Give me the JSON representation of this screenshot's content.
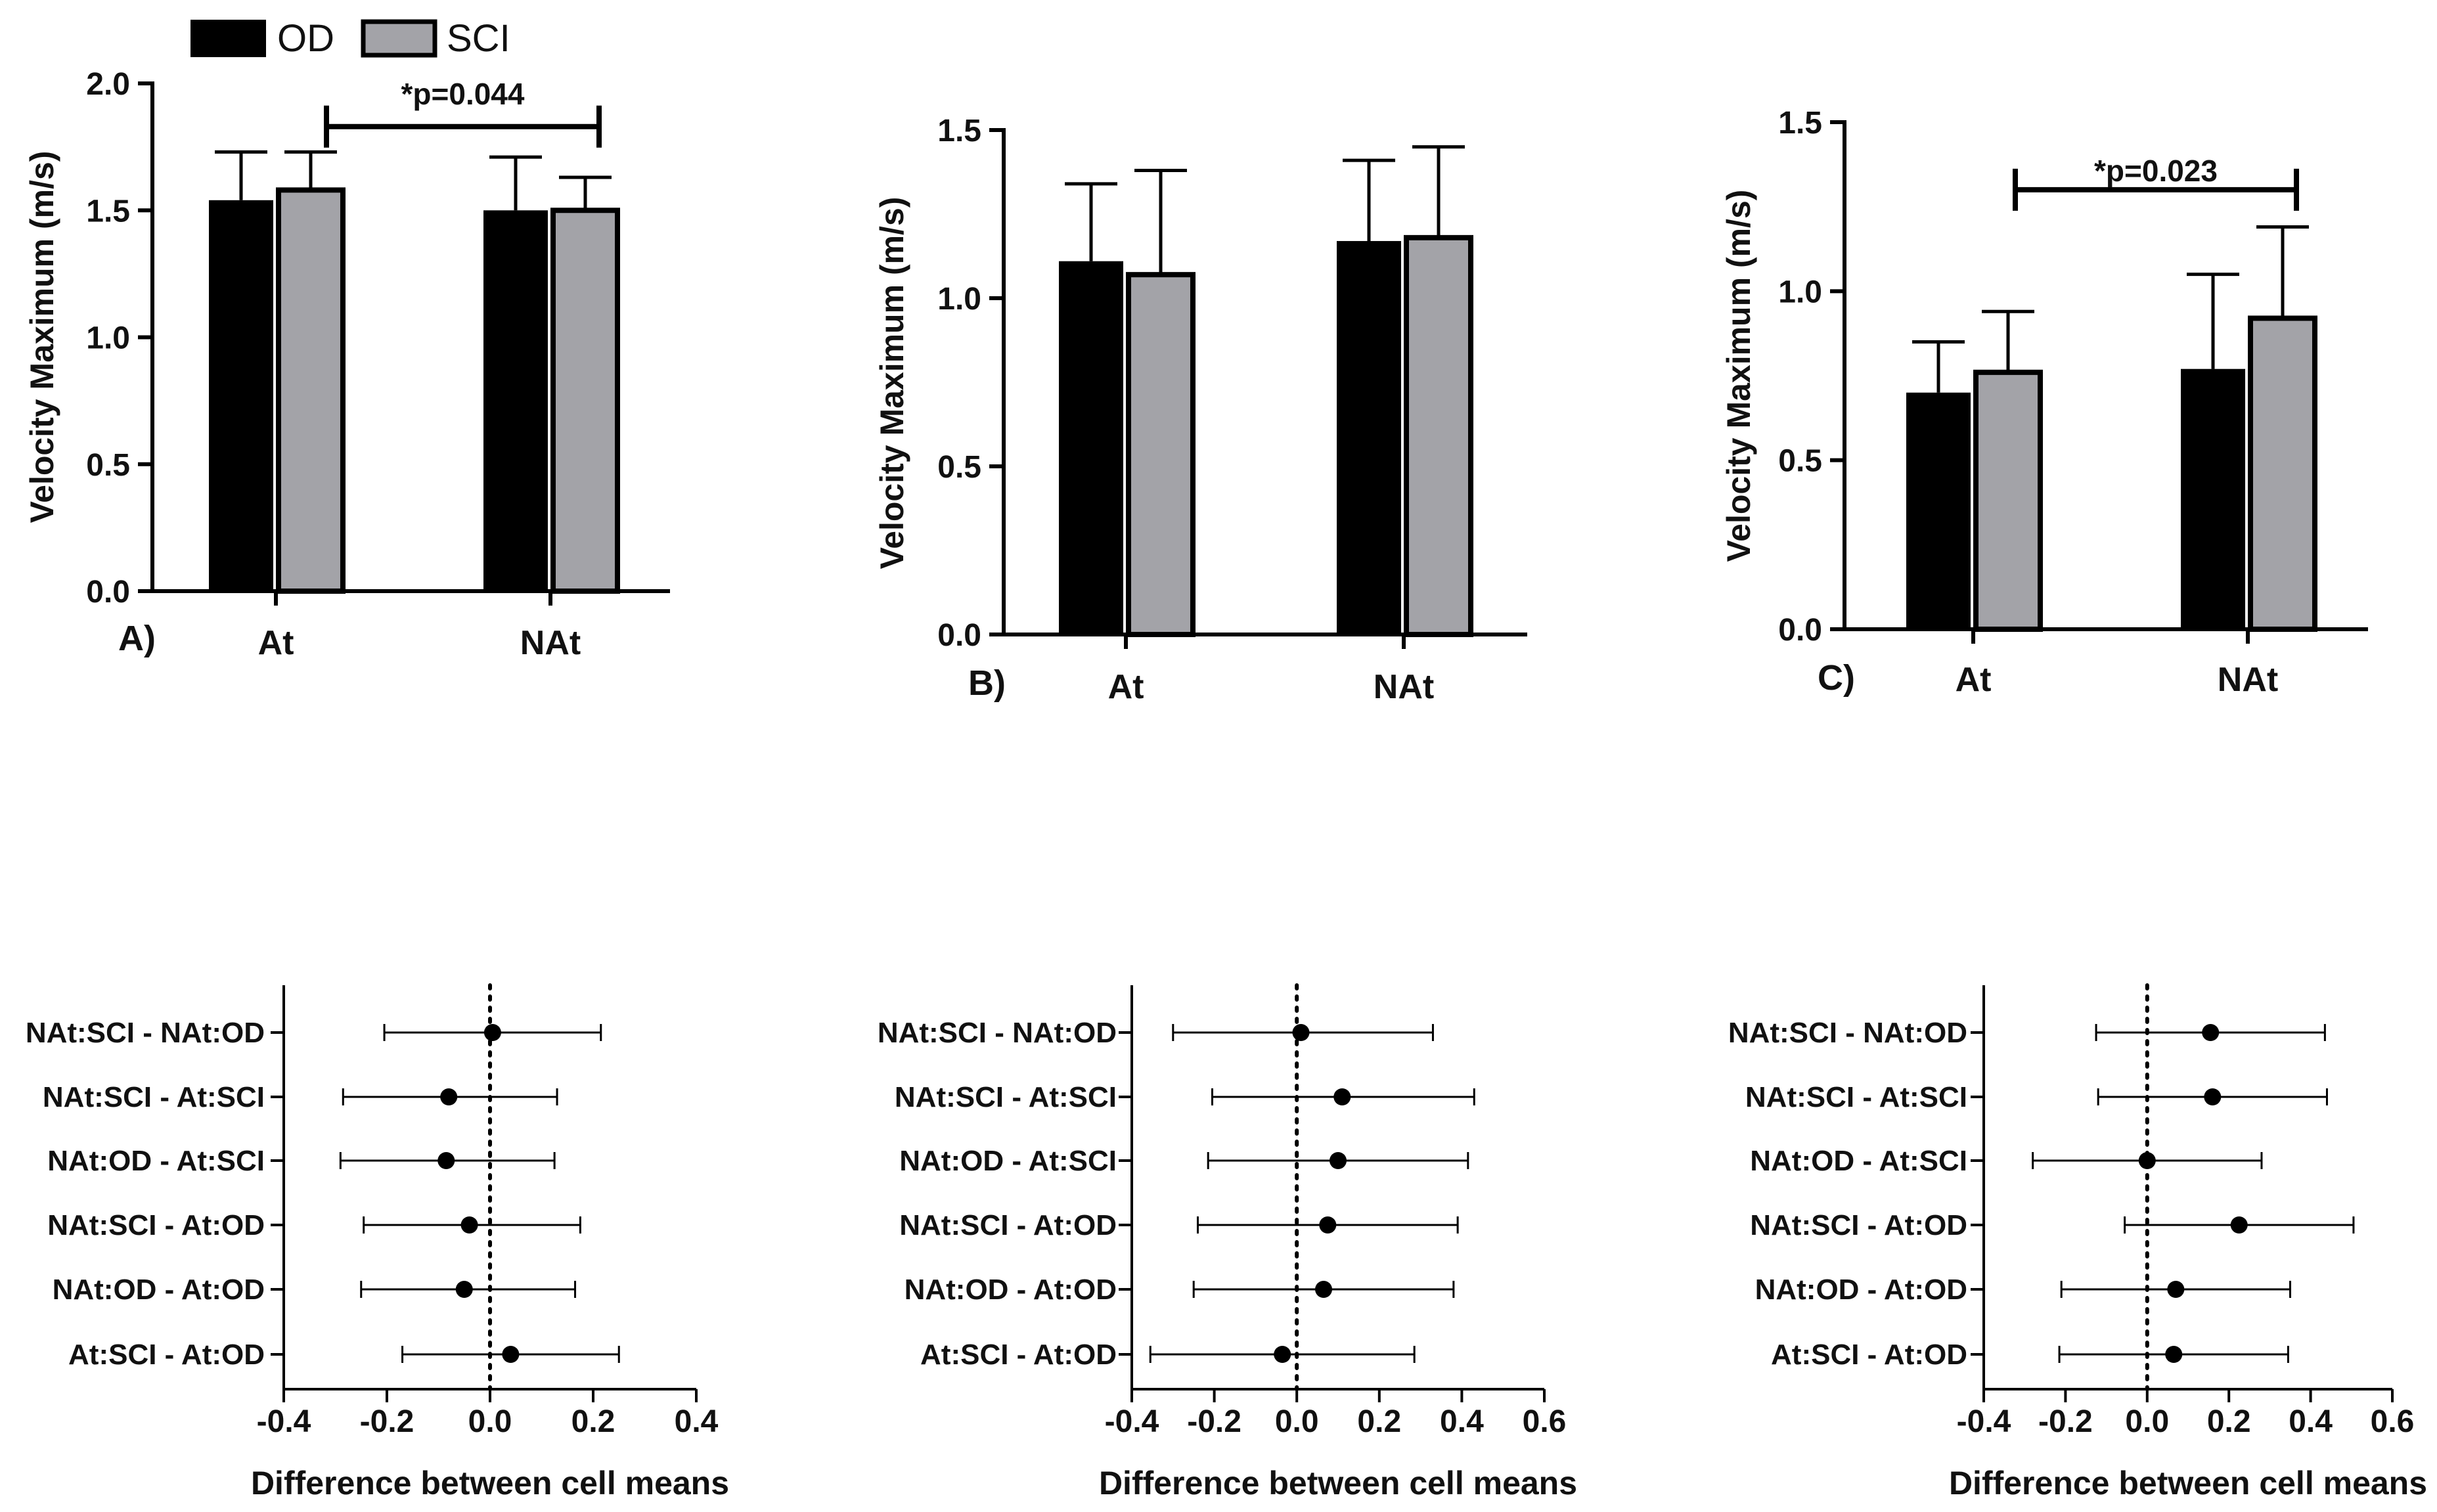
{
  "legend": [
    {
      "name": "OD",
      "color": "#000000"
    },
    {
      "name": "SCI",
      "color": "#a3a3a8"
    }
  ],
  "colors": {
    "axis": "#000000",
    "od": "#000000",
    "sci": "#a3a3a8"
  },
  "chart_data": [
    {
      "type": "bar",
      "panel": "A)",
      "ylabel": "Velocity Maximum (m/s)",
      "ylim": [
        0,
        2.0
      ],
      "yticks": [
        "0.0",
        "0.5",
        "1.0",
        "1.5",
        "2.0"
      ],
      "categories": [
        "At",
        "NAt"
      ],
      "series": [
        {
          "name": "OD",
          "values": [
            1.54,
            1.5
          ],
          "errors": [
            0.19,
            0.21
          ]
        },
        {
          "name": "SCI",
          "values": [
            1.58,
            1.5
          ],
          "errors": [
            0.15,
            0.13
          ]
        }
      ],
      "significance": {
        "label": "*p=0.044",
        "y": 1.83
      }
    },
    {
      "type": "bar",
      "panel": "B)",
      "ylabel": "Velocity Maximum (m/s)",
      "ylim": [
        0,
        1.5
      ],
      "yticks": [
        "0.0",
        "0.5",
        "1.0",
        "1.5"
      ],
      "categories": [
        "At",
        "NAt"
      ],
      "series": [
        {
          "name": "OD",
          "values": [
            1.11,
            1.17
          ],
          "errors": [
            0.23,
            0.24
          ]
        },
        {
          "name": "SCI",
          "values": [
            1.07,
            1.18
          ],
          "errors": [
            0.31,
            0.27
          ]
        }
      ]
    },
    {
      "type": "bar",
      "panel": "C)",
      "ylabel": "Velocity Maximum (m/s)",
      "ylim": [
        0,
        1.5
      ],
      "yticks": [
        "0.0",
        "0.5",
        "1.0",
        "1.5"
      ],
      "categories": [
        "At",
        "NAt"
      ],
      "series": [
        {
          "name": "OD",
          "values": [
            0.7,
            0.77
          ],
          "errors": [
            0.15,
            0.28
          ]
        },
        {
          "name": "SCI",
          "values": [
            0.76,
            0.92
          ],
          "errors": [
            0.18,
            0.27
          ]
        }
      ],
      "significance": {
        "label": "*p=0.023",
        "y": 1.3
      }
    },
    {
      "type": "forest",
      "xlabel": "Difference between cell means",
      "xlim": [
        -0.4,
        0.4
      ],
      "xticks": [
        "-0.4",
        "-0.2",
        "0.0",
        "0.2",
        "0.4"
      ],
      "comparisons": [
        "NAt:SCI - NAt:OD",
        "NAt:SCI - At:SCI",
        "NAt:OD - At:SCI",
        "NAt:SCI - At:OD",
        "NAt:OD - At:OD",
        "At:SCI - At:OD"
      ],
      "means": [
        0.005,
        -0.08,
        -0.085,
        -0.04,
        -0.05,
        0.04
      ],
      "lower": [
        -0.205,
        -0.285,
        -0.29,
        -0.245,
        -0.25,
        -0.17
      ],
      "upper": [
        0.215,
        0.13,
        0.125,
        0.175,
        0.165,
        0.25
      ]
    },
    {
      "type": "forest",
      "xlabel": "Difference between cell means",
      "xlim": [
        -0.4,
        0.6
      ],
      "xticks": [
        "-0.4",
        "-0.2",
        "0.0",
        "0.2",
        "0.4",
        "0.6"
      ],
      "comparisons": [
        "NAt:SCI - NAt:OD",
        "NAt:SCI - At:SCI",
        "NAt:OD - At:SCI",
        "NAt:SCI - At:OD",
        "NAt:OD - At:OD",
        "At:SCI - At:OD"
      ],
      "means": [
        0.01,
        0.11,
        0.1,
        0.075,
        0.065,
        -0.035
      ],
      "lower": [
        -0.3,
        -0.205,
        -0.215,
        -0.24,
        -0.25,
        -0.355
      ],
      "upper": [
        0.33,
        0.43,
        0.415,
        0.39,
        0.38,
        0.285
      ]
    },
    {
      "type": "forest",
      "xlabel": "Difference between cell means",
      "xlim": [
        -0.4,
        0.6
      ],
      "xticks": [
        "-0.4",
        "-0.2",
        "0.0",
        "0.2",
        "0.4",
        "0.6"
      ],
      "comparisons": [
        "NAt:SCI - NAt:OD",
        "NAt:SCI - At:SCI",
        "NAt:OD - At:SCI",
        "NAt:SCI - At:OD",
        "NAt:OD - At:OD",
        "At:SCI - At:OD"
      ],
      "means": [
        0.155,
        0.16,
        0.0,
        0.225,
        0.07,
        0.065
      ],
      "lower": [
        -0.125,
        -0.12,
        -0.28,
        -0.055,
        -0.21,
        -0.215
      ],
      "upper": [
        0.435,
        0.44,
        0.28,
        0.505,
        0.35,
        0.345
      ]
    }
  ]
}
